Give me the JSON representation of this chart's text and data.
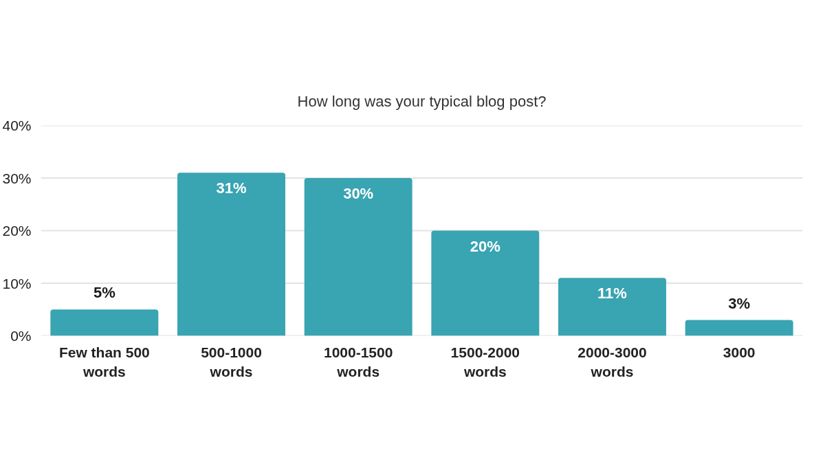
{
  "chart_data": {
    "type": "bar",
    "title": "How long was your typical blog post?",
    "categories": [
      "Few than 500\nwords",
      "500-1000\nwords",
      "1000-1500\nwords",
      "1500-2000\nwords",
      "2000-3000\nwords",
      "3000"
    ],
    "values": [
      5,
      31,
      30,
      20,
      11,
      3
    ],
    "color": "#39a4b2",
    "value_labels": [
      "5%",
      "31%",
      "30%",
      "20%",
      "11%",
      "3%"
    ],
    "ylim": [
      0,
      40
    ],
    "yticks": [
      {
        "value": 0,
        "label": "0%"
      },
      {
        "value": 10,
        "label": "10%"
      },
      {
        "value": 20,
        "label": "20%"
      },
      {
        "value": 30,
        "label": "30%"
      },
      {
        "value": 40,
        "label": "40%"
      }
    ],
    "grid": "y"
  }
}
